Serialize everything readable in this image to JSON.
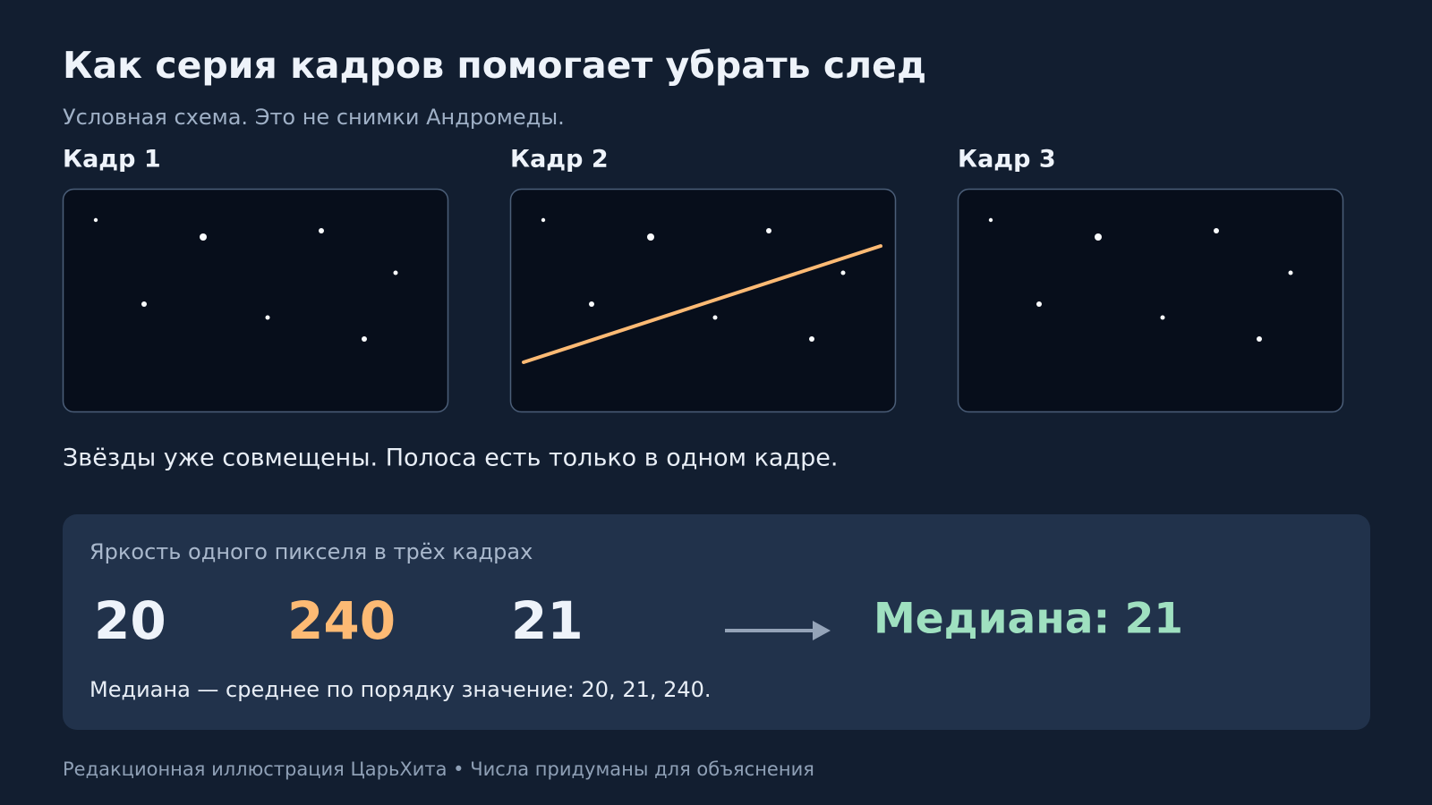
{
  "header": {
    "title": "Как серия кадров помогает убрать след",
    "subtitle": "Условная схема. Это не снимки Андромеды."
  },
  "frames": [
    {
      "label": "Кадр 1"
    },
    {
      "label": "Кадр 2"
    },
    {
      "label": "Кадр 3"
    }
  ],
  "caption": "Звёзды уже совмещены. Полоса есть только в одном кадре.",
  "panel": {
    "heading": "Яркость одного пикселя в трёх кадрах",
    "values": [
      20,
      240,
      21
    ],
    "result": "Медиана: 21",
    "note": "Медиана — среднее по порядку значение: 20, 21, 240."
  },
  "footer": "Редакционная иллюстрация ЦарьХита • Числа придуманы для объяснения"
}
